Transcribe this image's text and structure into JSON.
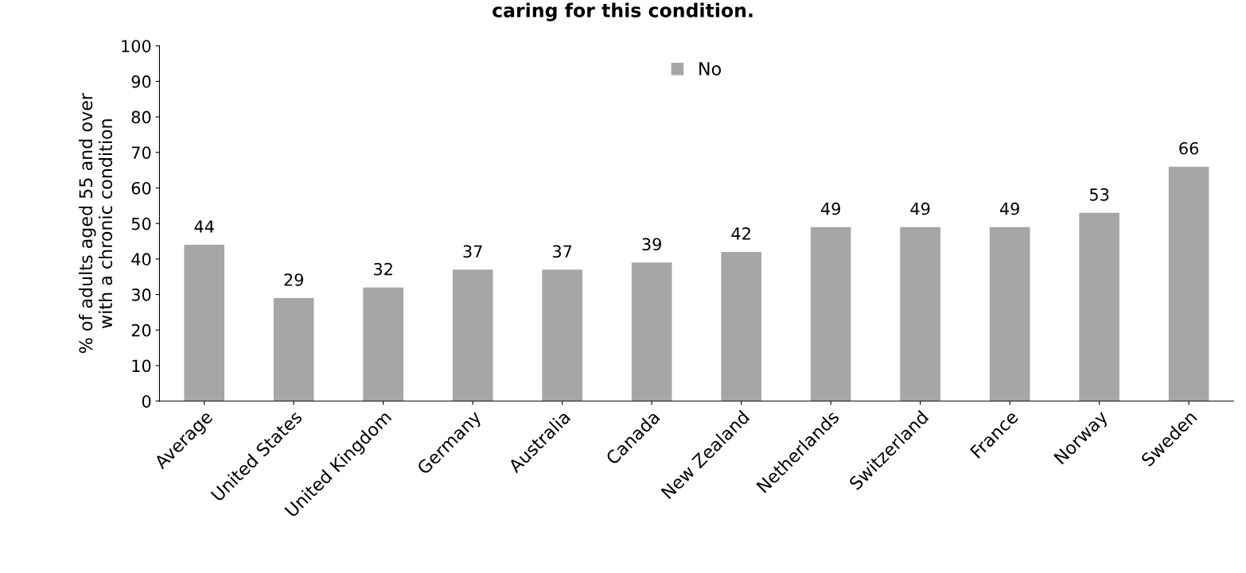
{
  "chart_data": {
    "type": "bar",
    "title": "caring for this condition.",
    "ylabel": "% of adults aged 55 and over\nwith a chronic condition",
    "categories": [
      "Average",
      "United States",
      "United Kingdom",
      "Germany",
      "Australia",
      "Canada",
      "New Zealand",
      "Netherlands",
      "Switzerland",
      "France",
      "Norway",
      "Sweden"
    ],
    "series": [
      {
        "name": "No",
        "color": "#a6a6a6",
        "values": [
          44,
          29,
          32,
          37,
          37,
          39,
          42,
          49,
          49,
          49,
          53,
          66
        ]
      }
    ],
    "ylim": [
      0,
      100
    ],
    "yticks": [
      0,
      10,
      20,
      30,
      40,
      50,
      60,
      70,
      80,
      90,
      100
    ],
    "grid": false,
    "legend": "top",
    "data_labels": true
  }
}
